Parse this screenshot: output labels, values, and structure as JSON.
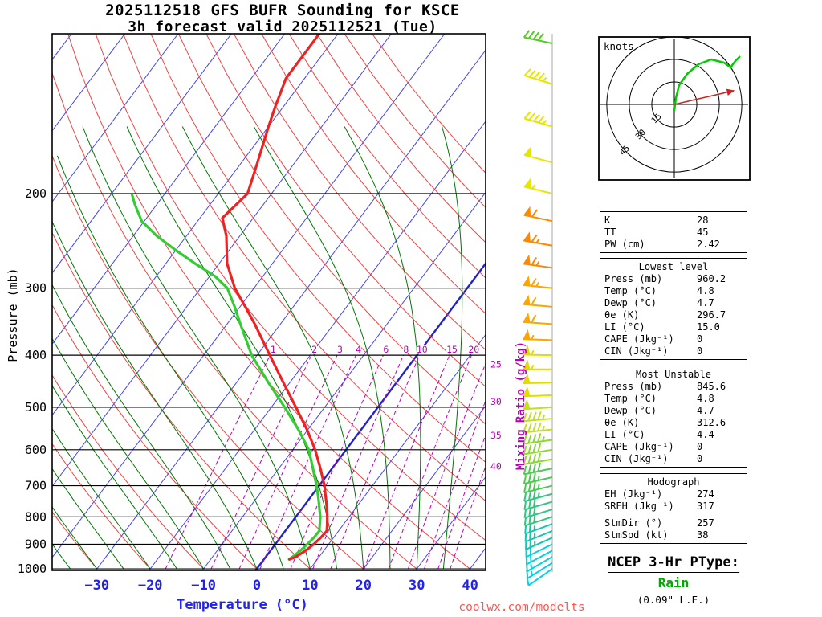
{
  "title": {
    "line1": "2025112518 GFS BUFR Sounding for KSCE",
    "line2": "3h forecast valid 2025112521 (Tue)"
  },
  "axis": {
    "pressure": "Pressure (mb)",
    "temperature": "Temperature (°C)",
    "mixing": "Mixing Ratio (g/kg)"
  },
  "hodograph_panel": {
    "units_label": "knots",
    "rings_kt": [
      15,
      30,
      45
    ]
  },
  "watermark": "coolwx.com/modelts",
  "ptype": {
    "heading": "NCEP 3-Hr PType:",
    "value": "Rain",
    "liquid_equiv": "(0.09\" L.E.)"
  },
  "stats": {
    "indices": {
      "rows": [
        {
          "label": "K",
          "value": "28"
        },
        {
          "label": "TT",
          "value": "45"
        },
        {
          "label": "PW (cm)",
          "value": "2.42"
        }
      ]
    },
    "lowest": {
      "header": "Lowest level",
      "rows": [
        {
          "label": "Press (mb)",
          "value": "960.2"
        },
        {
          "label": "Temp (°C)",
          "value": "4.8"
        },
        {
          "label": "Dewp (°C)",
          "value": "4.7"
        },
        {
          "label": "θe (K)",
          "value": "296.7"
        },
        {
          "label": "LI (°C)",
          "value": "15.0"
        },
        {
          "label": "CAPE (Jkg⁻¹)",
          "value": "0"
        },
        {
          "label": "CIN (Jkg⁻¹)",
          "value": "0"
        }
      ]
    },
    "most_unstable": {
      "header": "Most Unstable",
      "rows": [
        {
          "label": "Press (mb)",
          "value": "845.6"
        },
        {
          "label": "Temp (°C)",
          "value": "4.8"
        },
        {
          "label": "Dewp (°C)",
          "value": "4.7"
        },
        {
          "label": "θe (K)",
          "value": "312.6"
        },
        {
          "label": "LI (°C)",
          "value": "4.4"
        },
        {
          "label": "CAPE (Jkg⁻¹)",
          "value": "0"
        },
        {
          "label": "CIN (Jkg⁻¹)",
          "value": "0"
        }
      ]
    },
    "hodograph": {
      "header": "Hodograph",
      "rows": [
        {
          "label": "EH (Jkg⁻¹)",
          "value": "274"
        },
        {
          "label": "SREH (Jkg⁻¹)",
          "value": "317"
        },
        {
          "label": "StmDir (°)",
          "value": "257"
        },
        {
          "label": "StmSpd (kt)",
          "value": "38"
        }
      ]
    }
  },
  "chart_data": {
    "type": "skewt",
    "pressure_range_mb": [
      100,
      1000
    ],
    "surface_temperature_axis_range_c": [
      -40,
      45
    ],
    "pressure_ticks_mb": [
      200,
      300,
      400,
      500,
      600,
      700,
      800,
      900,
      1000
    ],
    "temperature_ticks_c": [
      -30,
      -20,
      -10,
      0,
      10,
      20,
      30,
      40
    ],
    "isotherm_step_c": 10,
    "mixing_ratio_lines_gkg": [
      1,
      2,
      3,
      4,
      6,
      8,
      10,
      15,
      20,
      25,
      30,
      35,
      40
    ],
    "mixing_ratio_inline_labels": [
      1,
      2,
      3,
      4,
      6,
      8,
      10,
      15,
      20
    ],
    "mixing_ratio_edge_labels": [
      25,
      30,
      35,
      40
    ],
    "temperature_profile": {
      "points_p_t": [
        [
          960,
          4.8
        ],
        [
          950,
          5.6
        ],
        [
          925,
          6.6
        ],
        [
          900,
          7.2
        ],
        [
          875,
          7.6
        ],
        [
          850,
          7.8
        ],
        [
          825,
          6.9
        ],
        [
          800,
          5.9
        ],
        [
          775,
          4.8
        ],
        [
          750,
          3.6
        ],
        [
          725,
          2.3
        ],
        [
          700,
          1.0
        ],
        [
          650,
          -2.2
        ],
        [
          600,
          -5.8
        ],
        [
          550,
          -10.2
        ],
        [
          500,
          -15.4
        ],
        [
          450,
          -21.2
        ],
        [
          400,
          -27.6
        ],
        [
          350,
          -34.8
        ],
        [
          325,
          -39.0
        ],
        [
          300,
          -43.6
        ],
        [
          270,
          -48.5
        ],
        [
          240,
          -52.5
        ],
        [
          222,
          -55.8
        ],
        [
          200,
          -54.5
        ],
        [
          175,
          -57.0
        ],
        [
          150,
          -60.0
        ],
        [
          138,
          -61.5
        ],
        [
          122,
          -63.5
        ],
        [
          101,
          -63.5
        ]
      ]
    },
    "dewpoint_profile": {
      "points_p_t": [
        [
          960,
          4.7
        ],
        [
          950,
          5.0
        ],
        [
          925,
          5.6
        ],
        [
          900,
          6.0
        ],
        [
          875,
          6.3
        ],
        [
          850,
          6.4
        ],
        [
          825,
          5.5
        ],
        [
          800,
          4.6
        ],
        [
          775,
          3.4
        ],
        [
          750,
          2.2
        ],
        [
          725,
          0.9
        ],
        [
          700,
          -0.5
        ],
        [
          650,
          -3.6
        ],
        [
          600,
          -7.0
        ],
        [
          550,
          -11.8
        ],
        [
          500,
          -17.5
        ],
        [
          450,
          -24.0
        ],
        [
          400,
          -31.0
        ],
        [
          350,
          -37.5
        ],
        [
          325,
          -41.0
        ],
        [
          300,
          -45.0
        ],
        [
          285,
          -49.0
        ],
        [
          270,
          -54.5
        ],
        [
          255,
          -60.0
        ],
        [
          240,
          -65.5
        ],
        [
          225,
          -70.5
        ],
        [
          210,
          -74.0
        ],
        [
          201,
          -76.0
        ]
      ]
    },
    "wind_barbs_p_dir_kt": [
      [
        1000,
        235,
        10
      ],
      [
        975,
        238,
        15
      ],
      [
        950,
        240,
        15
      ],
      [
        925,
        242,
        20
      ],
      [
        900,
        244,
        20
      ],
      [
        875,
        246,
        25
      ],
      [
        850,
        248,
        25
      ],
      [
        825,
        250,
        25
      ],
      [
        800,
        252,
        30
      ],
      [
        775,
        253,
        30
      ],
      [
        750,
        254,
        30
      ],
      [
        725,
        255,
        35
      ],
      [
        700,
        256,
        35
      ],
      [
        675,
        257,
        35
      ],
      [
        650,
        258,
        40
      ],
      [
        625,
        260,
        40
      ],
      [
        600,
        261,
        40
      ],
      [
        575,
        262,
        45
      ],
      [
        550,
        264,
        45
      ],
      [
        525,
        265,
        45
      ],
      [
        500,
        266,
        50
      ],
      [
        475,
        268,
        50
      ],
      [
        450,
        269,
        50
      ],
      [
        425,
        270,
        55
      ],
      [
        400,
        271,
        55
      ],
      [
        375,
        272,
        55
      ],
      [
        350,
        274,
        60
      ],
      [
        325,
        275,
        60
      ],
      [
        300,
        276,
        65
      ],
      [
        275,
        278,
        65
      ],
      [
        250,
        280,
        65
      ],
      [
        225,
        282,
        60
      ],
      [
        200,
        284,
        55
      ],
      [
        175,
        285,
        50
      ],
      [
        150,
        286,
        45
      ],
      [
        125,
        287,
        45
      ],
      [
        105,
        282,
        40
      ]
    ],
    "barb_color_scale": [
      {
        "p_max": 110,
        "color": "#55cc22"
      },
      {
        "p_max": 200,
        "color": "#e6e600"
      },
      {
        "p_max": 290,
        "color": "#ff8800"
      },
      {
        "p_max": 380,
        "color": "#ffa500"
      },
      {
        "p_max": 480,
        "color": "#e0dc00"
      },
      {
        "p_max": 560,
        "color": "#c2df20"
      },
      {
        "p_max": 630,
        "color": "#8ed832"
      },
      {
        "p_max": 720,
        "color": "#4ecb4e"
      },
      {
        "p_max": 800,
        "color": "#2fc87e"
      },
      {
        "p_max": 880,
        "color": "#12c9ac"
      },
      {
        "p_max": 1001,
        "color": "#00d2df"
      }
    ],
    "hodograph": {
      "rings_kt": [
        15,
        30,
        45
      ],
      "trace_uv_kt": [
        [
          0,
          -4
        ],
        [
          1,
          4
        ],
        [
          3,
          12
        ],
        [
          8,
          19
        ],
        [
          15,
          25
        ],
        [
          23,
          28
        ],
        [
          31,
          26
        ],
        [
          35,
          23
        ],
        [
          38,
          27
        ],
        [
          41,
          30
        ]
      ],
      "storm_motion": {
        "dir_deg": 257,
        "speed_kt": 38
      }
    },
    "colors": {
      "isotherm": "#4444ee",
      "isotherm_zero": "#2222cc",
      "dry_adiabat": "#ee4444",
      "moist_adiabat": "#007700",
      "mixing_ratio": "#bb00bb",
      "pressure_line": "#000000",
      "temperature_curve": "#ee2222",
      "dewpoint_curve": "#33cc33",
      "axis_temperature": "#2222ee",
      "barb_staff_line": "#aaaaaa",
      "hodograph_trace": "#00cc00",
      "storm_motion": "#cc2222"
    }
  }
}
